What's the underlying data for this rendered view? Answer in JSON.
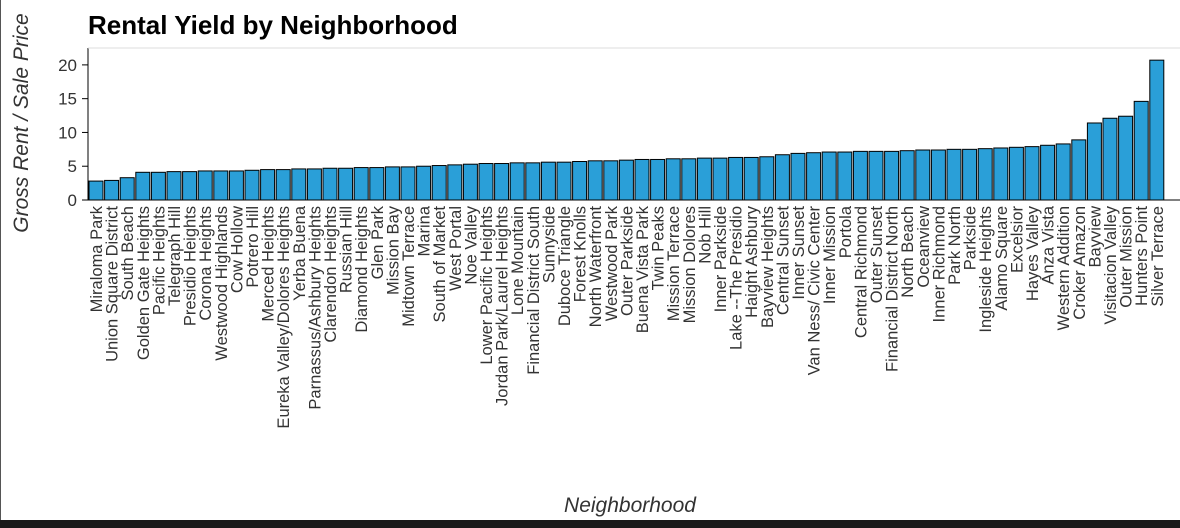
{
  "chart_data": {
    "type": "bar",
    "title": "Rental Yield by Neighborhood",
    "xlabel": "Neighborhood",
    "ylabel": "Gross Rent / Sale Price",
    "ylim": [
      0,
      22.5
    ],
    "yticks": [
      0,
      5,
      10,
      15,
      20
    ],
    "grid": false,
    "bar_color": "#2a9fd8",
    "bar_edge_color": "#000000",
    "categories": [
      "Miraloma Park",
      "Union Square District",
      "South Beach",
      "Golden Gate Heights",
      "Pacific Heights",
      "Telegraph Hill",
      "Presidio Heights",
      "Corona Heights",
      "Westwood Highlands",
      "Cow Hollow",
      "Potrero Hill",
      "Merced Heights",
      "Eureka Valley/Dolores Heights",
      "Yerba Buena",
      "Parnassus/Ashbury Heights",
      "Clarendon Heights",
      "Russian Hill",
      "Diamond Heights",
      "Glen Park",
      "Mission Bay",
      "Midtown Terrace",
      "Marina",
      "South of Market",
      "West Portal",
      "Noe Valley",
      "Lower Pacific Heights",
      "Jordan Park/Laurel Heights",
      "Lone Mountain",
      "Financial District South",
      "Sunnyside",
      "Duboce Triangle",
      "Forest Knolls",
      "North Waterfront",
      "Westwood Park",
      "Outer Parkside",
      "Buena Vista Park",
      "Twin Peaks",
      "Mission Terrace",
      "Mission Dolores",
      "Nob Hill",
      "Inner Parkside",
      "Lake --The Presidio",
      "Haight Ashbury",
      "Bayview Heights",
      "Central Sunset",
      "Inner Sunset",
      "Van Ness/ Civic Center",
      "Inner Mission",
      "Portola",
      "Central Richmond",
      "Outer Sunset",
      "Financial District North",
      "North Beach",
      "Oceanview",
      "Inner Richmond",
      "Park North",
      "Parkside",
      "Ingleside Heights",
      "Alamo Square",
      "Excelsior",
      "Hayes Valley",
      "Anza Vista",
      "Western Addition",
      "Croker Amazon",
      "Bayview",
      "Visitacion Valley",
      "Outer Mission",
      "Hunters Point",
      "Silver Terrace"
    ],
    "values": [
      2.8,
      2.9,
      3.3,
      4.1,
      4.1,
      4.2,
      4.2,
      4.3,
      4.3,
      4.3,
      4.4,
      4.5,
      4.5,
      4.6,
      4.6,
      4.7,
      4.7,
      4.8,
      4.8,
      4.9,
      4.9,
      5.0,
      5.1,
      5.2,
      5.3,
      5.4,
      5.4,
      5.5,
      5.5,
      5.6,
      5.6,
      5.7,
      5.8,
      5.8,
      5.9,
      6.0,
      6.0,
      6.1,
      6.1,
      6.2,
      6.2,
      6.3,
      6.3,
      6.4,
      6.7,
      6.9,
      7.0,
      7.1,
      7.1,
      7.2,
      7.2,
      7.2,
      7.3,
      7.4,
      7.4,
      7.5,
      7.5,
      7.6,
      7.7,
      7.8,
      7.9,
      8.1,
      8.3,
      8.9,
      11.4,
      12.1,
      12.4,
      14.6,
      20.7
    ]
  }
}
